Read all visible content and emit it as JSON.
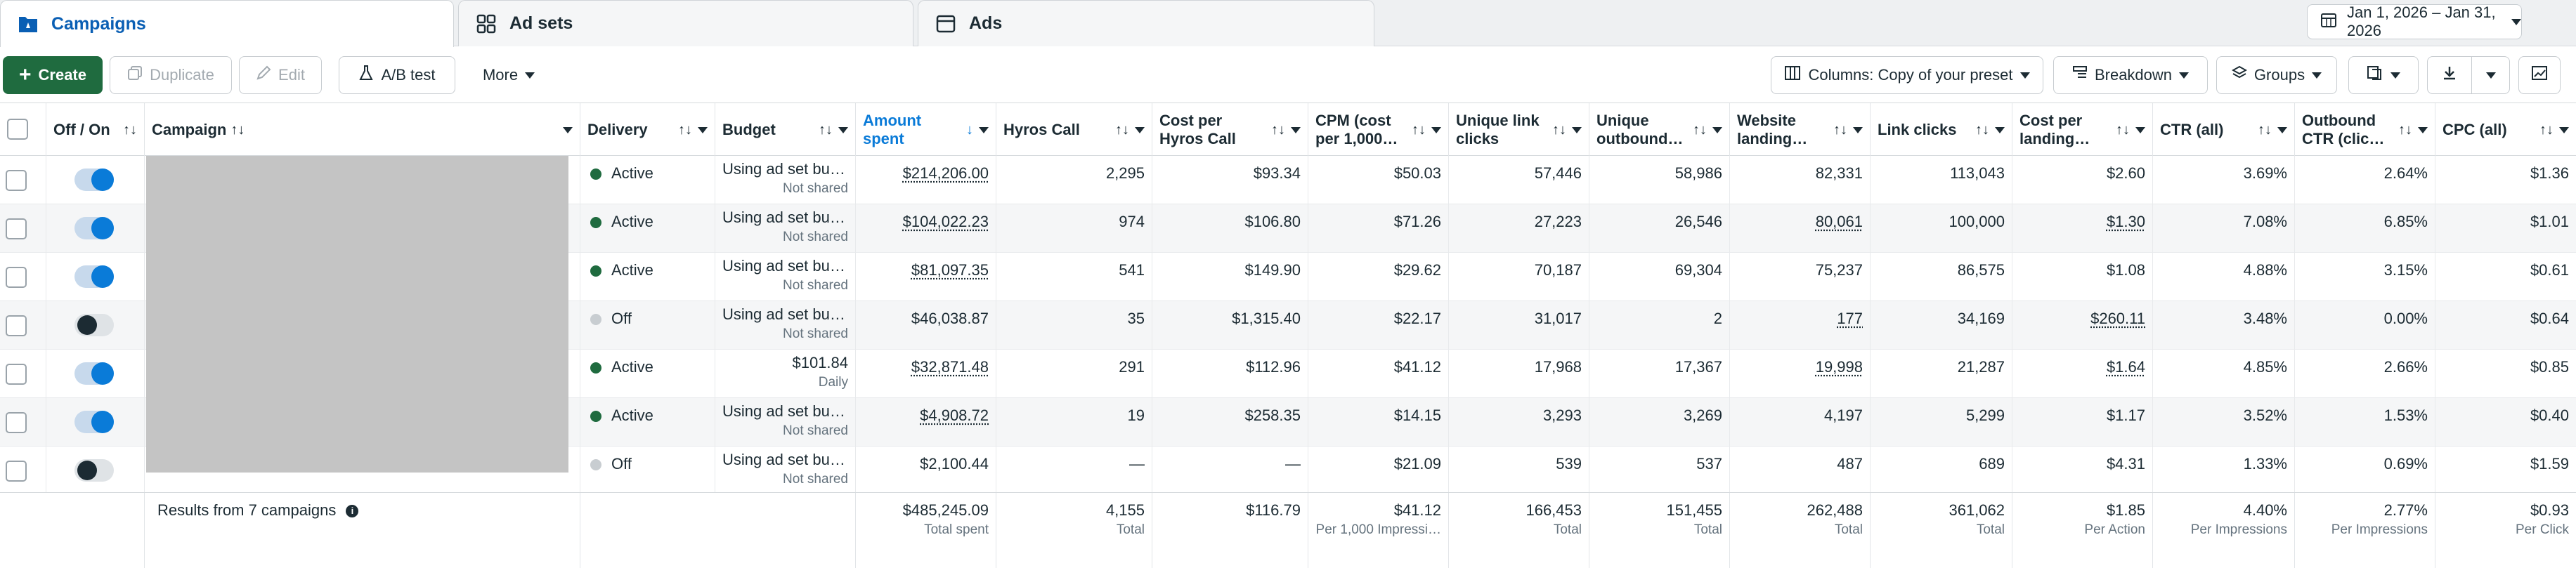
{
  "tabs": [
    {
      "label": "Campaigns",
      "icon": "folder-icon"
    },
    {
      "label": "Ad sets",
      "icon": "grid-icon"
    },
    {
      "label": "Ads",
      "icon": "ad-card-icon"
    }
  ],
  "date_range": "Jan 1, 2026 – Jan 31, 2026",
  "toolbar": {
    "create": "Create",
    "duplicate": "Duplicate",
    "edit": "Edit",
    "ab_test": "A/B test",
    "more": "More",
    "columns": "Columns: Copy of your preset",
    "breakdown": "Breakdown",
    "groups": "Groups"
  },
  "colors": {
    "accent": "#0a7bd8",
    "create": "#1f6b3f",
    "active_dot": "#1f6b3f"
  },
  "headers": {
    "offon": "Off / On",
    "campaign": "Campaign",
    "delivery": "Delivery",
    "budget": "Budget",
    "amount": "Amount spent",
    "hyros": "Hyros Call",
    "cph": "Cost per Hyros Call",
    "cpm": "CPM (cost per 1,000…",
    "ulc": "Unique link clicks",
    "uoc": "Unique outbound…",
    "wl": "Website landing…",
    "lc": "Link clicks",
    "cpl": "Cost per landing…",
    "ctr": "CTR (all)",
    "octr": "Outbound CTR (clic…",
    "cpc": "CPC (all)"
  },
  "rows": [
    {
      "on": true,
      "delivery": "Active",
      "budget": "Using ad set bu…",
      "budget_sub": "Not shared",
      "amount": "$214,206.00",
      "hyros": "2,295",
      "cph": "$93.34",
      "cpm": "$50.03",
      "ulc": "57,446",
      "uoc": "58,986",
      "wl": "82,331",
      "lc": "113,043",
      "cpl": "$2.60",
      "ctr": "3.69%",
      "octr": "2.64%",
      "cpc": "$1.36"
    },
    {
      "on": true,
      "delivery": "Active",
      "budget": "Using ad set bu…",
      "budget_sub": "Not shared",
      "amount": "$104,022.23",
      "hyros": "974",
      "cph": "$106.80",
      "cpm": "$71.26",
      "ulc": "27,223",
      "uoc": "26,546",
      "wl": "80,061",
      "lc": "100,000",
      "cpl": "$1.30",
      "ctr": "7.08%",
      "octr": "6.85%",
      "cpc": "$1.01"
    },
    {
      "on": true,
      "delivery": "Active",
      "budget": "Using ad set bu…",
      "budget_sub": "Not shared",
      "amount": "$81,097.35",
      "hyros": "541",
      "cph": "$149.90",
      "cpm": "$29.62",
      "ulc": "70,187",
      "uoc": "69,304",
      "wl": "75,237",
      "lc": "86,575",
      "cpl": "$1.08",
      "ctr": "4.88%",
      "octr": "3.15%",
      "cpc": "$0.61"
    },
    {
      "on": false,
      "delivery": "Off",
      "budget": "Using ad set bu…",
      "budget_sub": "Not shared",
      "amount": "$46,038.87",
      "hyros": "35",
      "cph": "$1,315.40",
      "cpm": "$22.17",
      "ulc": "31,017",
      "uoc": "2",
      "wl": "177",
      "lc": "34,169",
      "cpl": "$260.11",
      "ctr": "3.48%",
      "octr": "0.00%",
      "cpc": "$0.64"
    },
    {
      "on": true,
      "delivery": "Active",
      "budget": "$101.84",
      "budget_sub": "Daily",
      "amount": "$32,871.48",
      "hyros": "291",
      "cph": "$112.96",
      "cpm": "$41.12",
      "ulc": "17,968",
      "uoc": "17,367",
      "wl": "19,998",
      "lc": "21,287",
      "cpl": "$1.64",
      "ctr": "4.85%",
      "octr": "2.66%",
      "cpc": "$0.85"
    },
    {
      "on": true,
      "delivery": "Active",
      "budget": "Using ad set bu…",
      "budget_sub": "Not shared",
      "amount": "$4,908.72",
      "hyros": "19",
      "cph": "$258.35",
      "cpm": "$14.15",
      "ulc": "3,293",
      "uoc": "3,269",
      "wl": "4,197",
      "lc": "5,299",
      "cpl": "$1.17",
      "ctr": "3.52%",
      "octr": "1.53%",
      "cpc": "$0.40"
    },
    {
      "on": false,
      "delivery": "Off",
      "budget": "Using ad set bu…",
      "budget_sub": "Not shared",
      "amount": "$2,100.44",
      "hyros": "—",
      "cph": "—",
      "cpm": "$21.09",
      "ulc": "539",
      "uoc": "537",
      "wl": "487",
      "lc": "689",
      "cpl": "$4.31",
      "ctr": "1.33%",
      "octr": "0.69%",
      "cpc": "$1.59"
    }
  ],
  "footer": {
    "results": "Results from 7 campaigns",
    "amount": "$485,245.09",
    "amount_sub": "Total spent",
    "hyros": "4,155",
    "hyros_sub": "Total",
    "cph": "$116.79",
    "cpm": "$41.12",
    "cpm_sub": "Per 1,000 Impressi…",
    "ulc": "166,453",
    "ulc_sub": "Total",
    "uoc": "151,455",
    "uoc_sub": "Total",
    "wl": "262,488",
    "wl_sub": "Total",
    "lc": "361,062",
    "lc_sub": "Total",
    "cpl": "$1.85",
    "cpl_sub": "Per Action",
    "ctr": "4.40%",
    "ctr_sub": "Per Impressions",
    "octr": "2.77%",
    "octr_sub": "Per Impressions",
    "cpc": "$0.93",
    "cpc_sub": "Per Click"
  }
}
